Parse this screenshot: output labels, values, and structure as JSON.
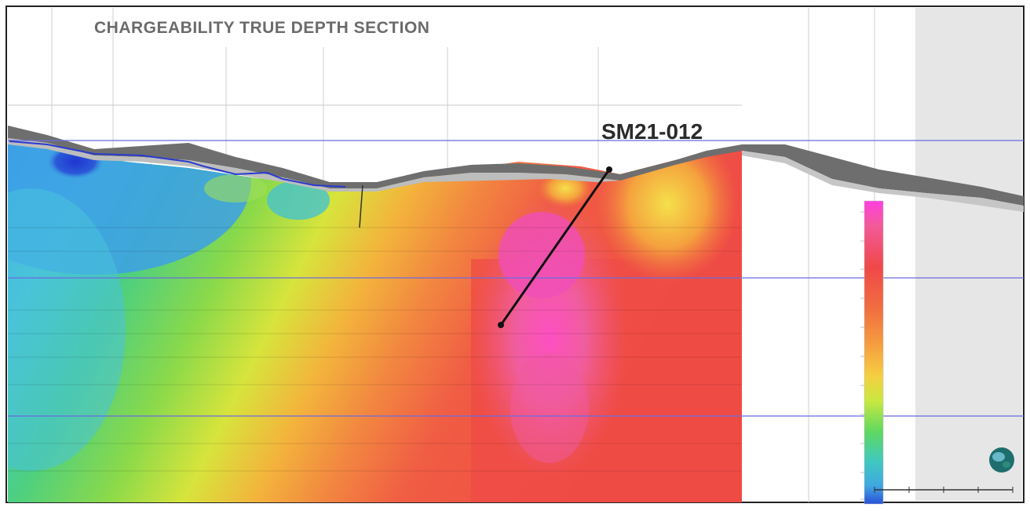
{
  "figure": {
    "title": "CHARGEABILITY TRUE DEPTH SECTION",
    "drillhole_label": "SM21-012"
  },
  "station_labels": [
    "",
    "",
    "",
    "",
    "",
    "",
    "",
    "",
    "",
    "",
    "",
    ""
  ],
  "elevation_labels": [
    "",
    "",
    "",
    "",
    "",
    ""
  ],
  "legend": {
    "labels": [
      "",
      "",
      "",
      "",
      "",
      "",
      "",
      "",
      "",
      "",
      ""
    ],
    "colors": [
      "#ff40e0",
      "#f25a9a",
      "#f04848",
      "#f07040",
      "#f5a040",
      "#f5d040",
      "#c8e840",
      "#60d860",
      "#40c8c0",
      "#40a8e0",
      "#2a50d8"
    ]
  },
  "scale_bar": {
    "labels": [
      "",
      "",
      "",
      ""
    ]
  },
  "logo": {
    "lines": [
      "",
      ""
    ]
  },
  "colors": {
    "chargeability_high": "#f04848",
    "chargeability_peak": "#f25a9a",
    "chargeability_low": "#2a50d8",
    "elevation_line": "#6b6be0",
    "topography": "#6e6e6e"
  }
}
